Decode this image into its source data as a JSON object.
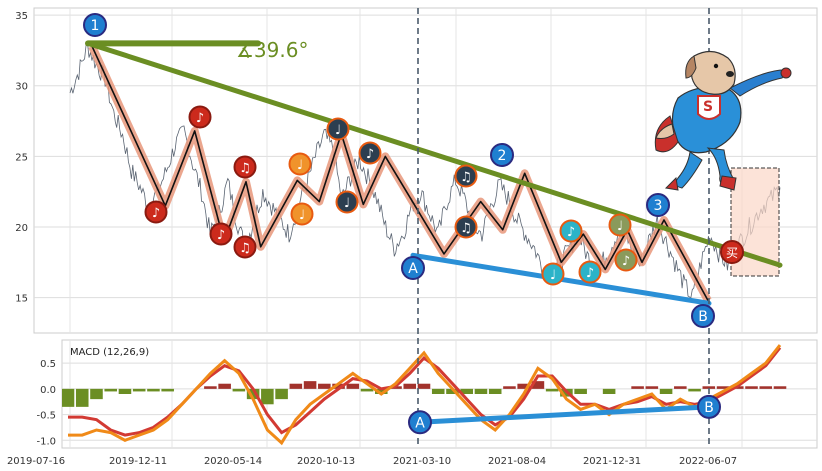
{
  "chart_data": [
    {
      "type": "line",
      "title": "",
      "xlabel": "",
      "ylabel": "",
      "ylim": [
        12.5,
        35.5
      ],
      "y_ticks": [
        15,
        20,
        25,
        30,
        35
      ],
      "x_tick_labels": [
        "2019-07-16",
        "2019-12-11",
        "2020-05-14",
        "2020-10-13",
        "2021-03-10",
        "2021-08-04",
        "2021-12-31",
        "2022-06-07"
      ],
      "grid": true,
      "series": [
        {
          "values": [
            29.5,
            31.0,
            32.8,
            31.5,
            30.5,
            28.0,
            26.5,
            24.0,
            22.8,
            21.5,
            22.5,
            24.0,
            25.8,
            26.8,
            24.5,
            22.5,
            19.5,
            21.0,
            23.2,
            20.5,
            18.6,
            20.5,
            22.5,
            21.5,
            20.5,
            19.5,
            21.5,
            23.0,
            25.0,
            26.5,
            25.5,
            22.0,
            23.5,
            24.8,
            23.5,
            22.0,
            20.0,
            18.5,
            19.5,
            21.5,
            22.5,
            21.0,
            19.5,
            21.8,
            23.3,
            22.0,
            20.0,
            19.5,
            21.5,
            23.0,
            22.0,
            20.5,
            19.5,
            18.5,
            17.0,
            16.5,
            17.5,
            18.5,
            19.5,
            18.0,
            16.8,
            17.8,
            19.0,
            20.2,
            18.5,
            17.3,
            19.0,
            20.5,
            19.0,
            17.5,
            16.0,
            15.0,
            17.5,
            19.5,
            18.2,
            17.3,
            18.5,
            19.5,
            20.5,
            21.5,
            22.0,
            22.8
          ]
        }
      ],
      "annotations": {
        "angle_label": "∡39.6°",
        "wave_labels": [
          "1",
          "2",
          "3",
          "A",
          "B"
        ],
        "note_glyphs": [
          "♩",
          "♪",
          "♫"
        ],
        "trade_badge": "买"
      }
    },
    {
      "type": "line",
      "title": "MACD (12,26,9)",
      "ylim": [
        -1.15,
        0.95
      ],
      "y_ticks": [
        -1.0,
        -0.5,
        0.0,
        0.5
      ],
      "y_tick_labels": [
        "-1.0",
        "-0.5",
        "0.0",
        "0.5"
      ],
      "series": [
        {
          "values": [
            -0.9,
            -0.9,
            -0.8,
            -0.85,
            -1.0,
            -0.9,
            -0.8,
            -0.6,
            -0.3,
            0.0,
            0.3,
            0.55,
            0.3,
            -0.2,
            -0.8,
            -1.05,
            -0.6,
            -0.3,
            -0.1,
            0.1,
            0.3,
            0.1,
            -0.1,
            0.1,
            0.4,
            0.7,
            0.3,
            0.0,
            -0.3,
            -0.6,
            -0.8,
            -0.5,
            -0.1,
            0.4,
            0.2,
            -0.2,
            -0.4,
            -0.3,
            -0.5,
            -0.3,
            -0.2,
            -0.1,
            -0.4,
            -0.2,
            -0.35,
            -0.2,
            -0.05,
            0.1,
            0.3,
            0.5,
            0.85
          ]
        },
        {
          "values": [
            -0.55,
            -0.55,
            -0.6,
            -0.8,
            -0.9,
            -0.85,
            -0.75,
            -0.55,
            -0.3,
            0.0,
            0.25,
            0.45,
            0.35,
            0.0,
            -0.5,
            -0.85,
            -0.7,
            -0.45,
            -0.2,
            0.0,
            0.2,
            0.15,
            0.0,
            0.05,
            0.3,
            0.6,
            0.4,
            0.1,
            -0.2,
            -0.5,
            -0.7,
            -0.55,
            -0.2,
            0.25,
            0.25,
            -0.05,
            -0.3,
            -0.3,
            -0.4,
            -0.3,
            -0.25,
            -0.15,
            -0.3,
            -0.25,
            -0.3,
            -0.25,
            -0.1,
            0.05,
            0.25,
            0.45,
            0.8
          ]
        }
      ],
      "histogram": [
        -0.35,
        -0.35,
        -0.2,
        -0.05,
        -0.1,
        -0.05,
        -0.05,
        -0.05,
        0.0,
        0.0,
        0.05,
        0.1,
        -0.05,
        -0.2,
        -0.3,
        -0.2,
        0.1,
        0.15,
        0.1,
        0.1,
        0.1,
        -0.05,
        -0.1,
        0.05,
        0.1,
        0.1,
        -0.1,
        -0.1,
        -0.1,
        -0.1,
        -0.1,
        0.05,
        0.1,
        0.15,
        -0.05,
        -0.15,
        -0.1,
        0.0,
        -0.1,
        0.0,
        0.05,
        0.05,
        -0.1,
        0.05,
        -0.05,
        0.05,
        0.05,
        0.05,
        0.05,
        0.05,
        0.05
      ],
      "annotations": {
        "divergence_labels": [
          "A",
          "B"
        ]
      }
    }
  ],
  "colors": {
    "price": "#5a6472",
    "trend": "#6b8e23",
    "wave_salmon": "#e8967a",
    "wave_black": "#111111",
    "wave_gray": "#9aa8b0",
    "support": "#2a8fd6",
    "macd_red": "#d23a33",
    "macd_orange": "#f08a18",
    "hist_pos": "#a2322c",
    "hist_neg": "#6b8e23",
    "badge_red": "#cc2a1c",
    "badge_orange": "#f0932b",
    "badge_dark": "#2c3e50",
    "badge_cyan": "#2cb3c8",
    "badge_olive": "#8a9a5b",
    "badge_blue": "#1f7fd0",
    "badge_ring": "#2a2a80",
    "ring_orange": "#e85a10",
    "box_fill": "#fbd7c8",
    "box_edge": "#333333"
  }
}
